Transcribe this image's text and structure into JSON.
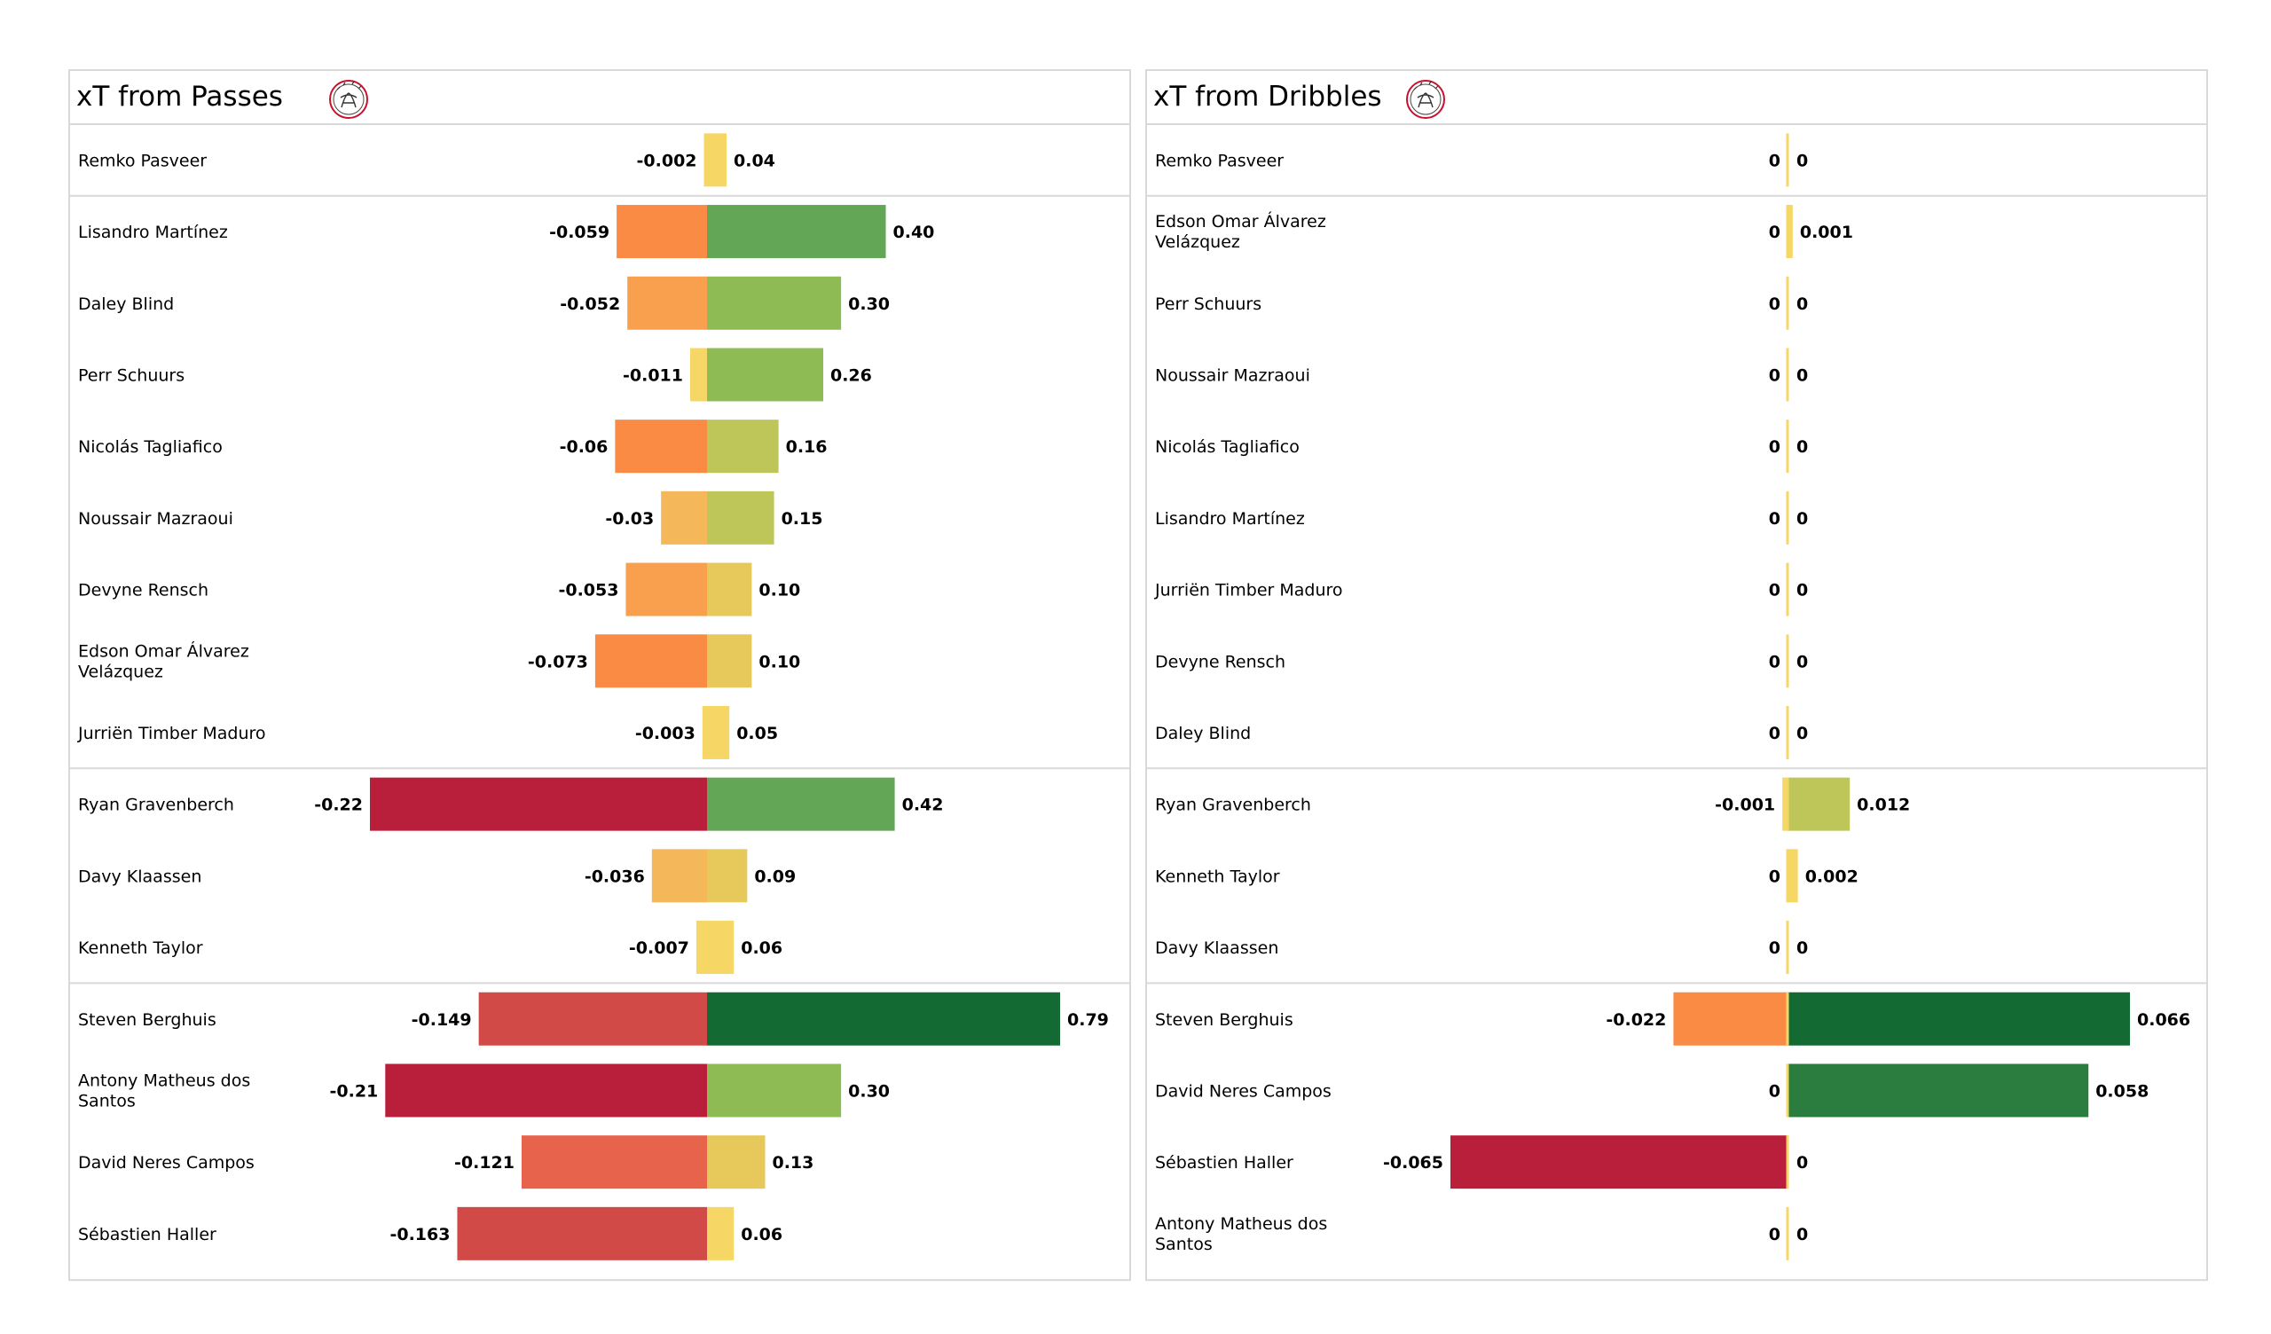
{
  "chart_data": [
    {
      "type": "bar",
      "title": "xT from Passes",
      "xlim": [
        -0.22,
        0.79
      ],
      "groups": [
        [
          {
            "player": "Remko Pasveer",
            "neg": -0.002,
            "neg_label": "-0.002",
            "pos": 0.04,
            "pos_label": "0.04"
          }
        ],
        [
          {
            "player": "Lisandro Martínez",
            "neg": -0.059,
            "neg_label": "-0.059",
            "pos": 0.4,
            "pos_label": "0.40"
          },
          {
            "player": "Daley Blind",
            "neg": -0.052,
            "neg_label": "-0.052",
            "pos": 0.3,
            "pos_label": "0.30"
          },
          {
            "player": "Perr Schuurs",
            "neg": -0.011,
            "neg_label": "-0.011",
            "pos": 0.26,
            "pos_label": "0.26"
          },
          {
            "player": "Nicolás Tagliafico",
            "neg": -0.06,
            "neg_label": "-0.06",
            "pos": 0.16,
            "pos_label": "0.16"
          },
          {
            "player": "Noussair Mazraoui",
            "neg": -0.03,
            "neg_label": "-0.03",
            "pos": 0.15,
            "pos_label": "0.15"
          },
          {
            "player": "Devyne Rensch",
            "neg": -0.053,
            "neg_label": "-0.053",
            "pos": 0.1,
            "pos_label": "0.10"
          },
          {
            "player": "Edson Omar Álvarez\nVelázquez",
            "neg": -0.073,
            "neg_label": "-0.073",
            "pos": 0.1,
            "pos_label": "0.10"
          },
          {
            "player": "Jurriën Timber Maduro",
            "neg": -0.003,
            "neg_label": "-0.003",
            "pos": 0.05,
            "pos_label": "0.05"
          }
        ],
        [
          {
            "player": "Ryan Gravenberch",
            "neg": -0.22,
            "neg_label": "-0.22",
            "pos": 0.42,
            "pos_label": "0.42"
          },
          {
            "player": "Davy Klaassen",
            "neg": -0.036,
            "neg_label": "-0.036",
            "pos": 0.09,
            "pos_label": "0.09"
          },
          {
            "player": "Kenneth Taylor",
            "neg": -0.007,
            "neg_label": "-0.007",
            "pos": 0.06,
            "pos_label": "0.06"
          }
        ],
        [
          {
            "player": "Steven Berghuis",
            "neg": -0.149,
            "neg_label": "-0.149",
            "pos": 0.79,
            "pos_label": "0.79"
          },
          {
            "player": "Antony Matheus dos\nSantos",
            "neg": -0.21,
            "neg_label": "-0.21",
            "pos": 0.3,
            "pos_label": "0.30"
          },
          {
            "player": "David Neres Campos",
            "neg": -0.121,
            "neg_label": "-0.121",
            "pos": 0.13,
            "pos_label": "0.13"
          },
          {
            "player": "Sébastien Haller",
            "neg": -0.163,
            "neg_label": "-0.163",
            "pos": 0.06,
            "pos_label": "0.06"
          }
        ]
      ]
    },
    {
      "type": "bar",
      "title": "xT from Dribbles",
      "xlim": [
        -0.065,
        0.066
      ],
      "groups": [
        [
          {
            "player": "Remko Pasveer",
            "neg": 0,
            "neg_label": "0",
            "pos": 0,
            "pos_label": "0"
          }
        ],
        [
          {
            "player": "Edson Omar Álvarez\nVelázquez",
            "neg": 0,
            "neg_label": "0",
            "pos": 0.001,
            "pos_label": "0.001"
          },
          {
            "player": "Perr Schuurs",
            "neg": 0,
            "neg_label": "0",
            "pos": 0,
            "pos_label": "0"
          },
          {
            "player": "Noussair Mazraoui",
            "neg": 0,
            "neg_label": "0",
            "pos": 0,
            "pos_label": "0"
          },
          {
            "player": "Nicolás Tagliafico",
            "neg": 0,
            "neg_label": "0",
            "pos": 0,
            "pos_label": "0"
          },
          {
            "player": "Lisandro Martínez",
            "neg": 0,
            "neg_label": "0",
            "pos": 0,
            "pos_label": "0"
          },
          {
            "player": "Jurriën Timber Maduro",
            "neg": 0,
            "neg_label": "0",
            "pos": 0,
            "pos_label": "0"
          },
          {
            "player": "Devyne Rensch",
            "neg": 0,
            "neg_label": "0",
            "pos": 0,
            "pos_label": "0"
          },
          {
            "player": "Daley Blind",
            "neg": 0,
            "neg_label": "0",
            "pos": 0,
            "pos_label": "0"
          }
        ],
        [
          {
            "player": "Ryan Gravenberch",
            "neg": -0.001,
            "neg_label": "-0.001",
            "pos": 0.012,
            "pos_label": "0.012"
          },
          {
            "player": "Kenneth Taylor",
            "neg": 0,
            "neg_label": "0",
            "pos": 0.002,
            "pos_label": "0.002"
          },
          {
            "player": "Davy Klaassen",
            "neg": 0,
            "neg_label": "0",
            "pos": 0,
            "pos_label": "0"
          }
        ],
        [
          {
            "player": "Steven Berghuis",
            "neg": -0.022,
            "neg_label": "-0.022",
            "pos": 0.066,
            "pos_label": "0.066"
          },
          {
            "player": "David Neres Campos",
            "neg": 0,
            "neg_label": "0",
            "pos": 0.058,
            "pos_label": "0.058"
          },
          {
            "player": "Sébastien Haller",
            "neg": -0.065,
            "neg_label": "-0.065",
            "pos": 0,
            "pos_label": "0"
          },
          {
            "player": "Antony Matheus dos\nSantos",
            "neg": 0,
            "neg_label": "0",
            "pos": 0,
            "pos_label": "0"
          }
        ]
      ]
    }
  ],
  "colors": {
    "scale": [
      "#f6d765",
      "#e7c85a",
      "#bec65a",
      "#8fbb55",
      "#63a656",
      "#2b7d3f",
      "#136b33"
    ],
    "neg_scale": [
      "#f6d765",
      "#f4b85a",
      "#f8a04e",
      "#fa8b44",
      "#e7634b",
      "#d24a47",
      "#b91e3a"
    ],
    "panel_border": "#d9d9d9",
    "text": "#000000"
  },
  "icons": {
    "crest": "ajax-crest-icon"
  }
}
